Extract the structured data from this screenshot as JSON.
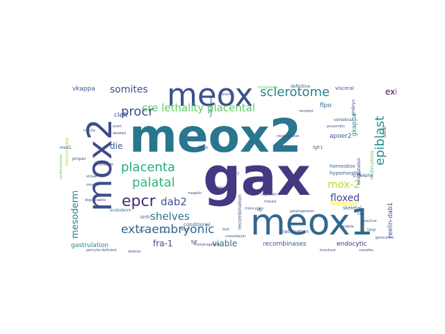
{
  "words": [
    {
      "text": "meox2",
      "color": "#2a768e"
    },
    {
      "text": "gax",
      "color": "#453781"
    },
    {
      "text": "meox",
      "color": "#3b528b"
    },
    {
      "text": "mox2",
      "color": "#3e4c8a"
    },
    {
      "text": "meox1",
      "color": "#31688e"
    },
    {
      "text": "sclerotome",
      "color": "#26828e"
    },
    {
      "text": "epiblast",
      "color": "#21918c"
    },
    {
      "text": "cre lethality placental",
      "color": "#5ec962"
    },
    {
      "text": "placenta",
      "color": "#25ab82"
    },
    {
      "text": "palatal",
      "color": "#31b57b"
    },
    {
      "text": "procr",
      "color": "#3e4a89"
    },
    {
      "text": "somites",
      "color": "#3b528b"
    },
    {
      "text": "extraembryonic",
      "color": "#33638d"
    },
    {
      "text": "epcr",
      "color": "#482878"
    },
    {
      "text": "dab2",
      "color": "#3a538b"
    },
    {
      "text": "shelves",
      "color": "#2e6e8e"
    },
    {
      "text": "mox-2",
      "color": "#b5de2b"
    },
    {
      "text": "floxed",
      "color": "#3f4889"
    },
    {
      "text": "mesoderm",
      "color": "#27808e"
    },
    {
      "text": "viable",
      "color": "#2c718e"
    },
    {
      "text": "fra-1",
      "color": "#3e4989"
    },
    {
      "text": "exit",
      "color": "#440154"
    },
    {
      "text": "die",
      "color": "#39568c"
    },
    {
      "text": "recombinases",
      "color": "#3b528b"
    },
    {
      "text": "gastrulation",
      "color": "#25838e"
    },
    {
      "text": "endocytic",
      "color": "#472c7a"
    },
    {
      "text": "separase",
      "color": "#fde725"
    },
    {
      "text": "reelin-dab1",
      "color": "#3e4989"
    },
    {
      "text": "gkappa",
      "color": "#26828e"
    },
    {
      "text": "flpo",
      "color": "#31688e"
    },
    {
      "text": "apoer2",
      "color": "#3b528b"
    },
    {
      "text": "vkappa",
      "color": "#3b528b"
    },
    {
      "text": "cleft",
      "color": "#3e4c8a"
    },
    {
      "text": "homeobox",
      "color": "#31688e"
    },
    {
      "text": "hypomorphic",
      "color": "#39568c"
    },
    {
      "text": "endocytosis",
      "color": "#5ec962"
    },
    {
      "text": "axial",
      "color": "#3e4a89"
    },
    {
      "text": "visceral",
      "color": "#3b528b"
    },
    {
      "text": "skeletal",
      "color": "#31688e"
    },
    {
      "text": "recombination",
      "color": "#3b528b"
    },
    {
      "text": "inactivation",
      "color": "#3b528b"
    },
    {
      "text": "conditional",
      "color": "#2e6e8e"
    },
    {
      "text": "endoderm",
      "color": "#2a788e"
    },
    {
      "text": "birth",
      "color": "#3b528b"
    },
    {
      "text": "proper",
      "color": "#3b528b"
    },
    {
      "text": "primitive",
      "color": "#3e4a89"
    },
    {
      "text": "limb",
      "color": "#3b528b"
    },
    {
      "text": "fgf",
      "color": "#440154"
    },
    {
      "text": "rb",
      "color": "#3b528b"
    },
    {
      "text": "loxp",
      "color": "#31688e"
    },
    {
      "text": "fgfr1",
      "color": "#3b528b"
    },
    {
      "text": "vertebral",
      "color": "#3b528b"
    },
    {
      "text": "definitive",
      "color": "#3b528b"
    },
    {
      "text": "midgestation",
      "color": "#3e4a89"
    },
    {
      "text": "embryo",
      "color": "#3b528b"
    },
    {
      "text": "p38alpha",
      "color": "#3b528b"
    },
    {
      "text": "mesenchyme",
      "color": "#a0da39"
    },
    {
      "text": "mox1",
      "color": "#3b528b"
    },
    {
      "text": "dispensable",
      "color": "#3b528b"
    },
    {
      "text": "streak",
      "color": "#3b528b"
    },
    {
      "text": "smooth",
      "color": "#3b528b"
    },
    {
      "text": "megalin",
      "color": "#3b528b"
    },
    {
      "text": "ingrowth",
      "color": "#3b528b"
    },
    {
      "text": "palatogenesis",
      "color": "#3b528b"
    },
    {
      "text": "more-pgko",
      "color": "#3b528b"
    },
    {
      "text": "overt",
      "color": "#3b528b"
    },
    {
      "text": "deleted",
      "color": "#3b528b"
    },
    {
      "text": "presomitic",
      "color": "#3b528b"
    },
    {
      "text": "polarity",
      "color": "#3b528b"
    },
    {
      "text": "adaptor",
      "color": "#3b528b"
    },
    {
      "text": "mox2cre",
      "color": "#3b528b"
    },
    {
      "text": "mosaic",
      "color": "#3b528b"
    },
    {
      "text": "rib",
      "color": "#3b528b"
    },
    {
      "text": "mobile",
      "color": "#3b528b"
    },
    {
      "text": "knockout",
      "color": "#3b528b"
    },
    {
      "text": "cassette",
      "color": "#3b528b"
    },
    {
      "text": "bud",
      "color": "#3b528b"
    },
    {
      "text": "dural",
      "color": "#3b528b"
    },
    {
      "text": "sinus",
      "color": "#3b528b"
    },
    {
      "text": "hgf",
      "color": "#3b528b"
    },
    {
      "text": "mox2a",
      "color": "#3b528b"
    },
    {
      "text": "cardiovascular",
      "color": "#5ec962"
    },
    {
      "text": "del22",
      "color": "#3b528b"
    },
    {
      "text": "nitrogenous",
      "color": "#5ec962"
    },
    {
      "text": "generated",
      "color": "#3b528b"
    },
    {
      "text": "trophoblast",
      "color": "#3b528b"
    },
    {
      "text": "receptor",
      "color": "#3b528b"
    },
    {
      "text": "morphogenetic",
      "color": "#3b528b"
    },
    {
      "text": "pericyte-deficient",
      "color": "#3b528b"
    },
    {
      "text": "recapitulates",
      "color": "#3b528b"
    },
    {
      "text": "craniofacial",
      "color": "#3b528b"
    },
    {
      "text": "defects",
      "color": "#3b528b"
    }
  ]
}
